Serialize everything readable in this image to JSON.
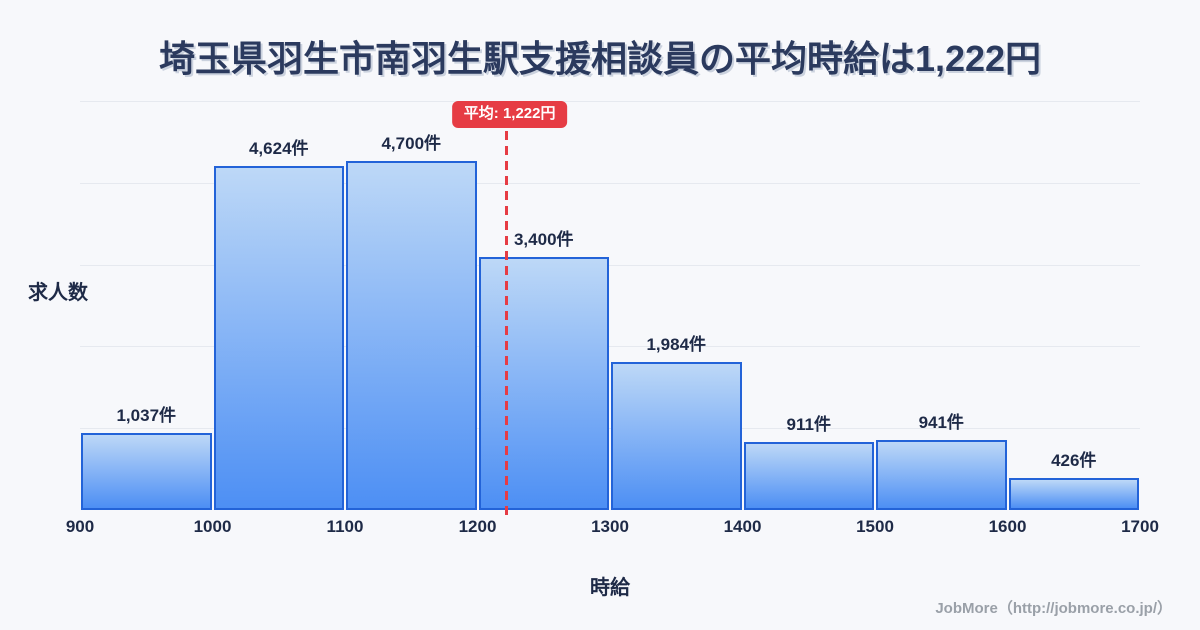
{
  "title": "埼玉県羽生市南羽生駅支援相談員の平均時給は1,222円",
  "chart_data": {
    "type": "bar",
    "title": "埼玉県羽生市南羽生駅支援相談員の平均時給は1,222円",
    "xlabel": "時給",
    "ylabel": "求人数",
    "bin_edges": [
      900,
      1000,
      1100,
      1200,
      1300,
      1400,
      1500,
      1600,
      1700
    ],
    "values": [
      1037,
      4624,
      4700,
      3400,
      1984,
      911,
      941,
      426
    ],
    "value_labels": [
      "1,037件",
      "4,624件",
      "4,700件",
      "3,400件",
      "1,984件",
      "911件",
      "941件",
      "426件"
    ],
    "mean_line": {
      "value": 1222,
      "label": "平均: 1,222円"
    },
    "xlim": [
      900,
      1700
    ],
    "ylim": [
      0,
      5500
    ],
    "grid": true,
    "legend_position": "none"
  },
  "footer": {
    "credit": "JobMore（http://jobmore.co.jp/）"
  },
  "colors": {
    "background": "#f7f8fb",
    "title_text": "#2b3a5e",
    "axis_text": "#1e2a47",
    "grid": "#e6e9ef",
    "bar_top": "#bdd8f7",
    "bar_bottom": "#4d8ff4",
    "bar_border": "#2363d8",
    "mean_red": "#e63c44",
    "footer_text": "#9aa0a8"
  }
}
